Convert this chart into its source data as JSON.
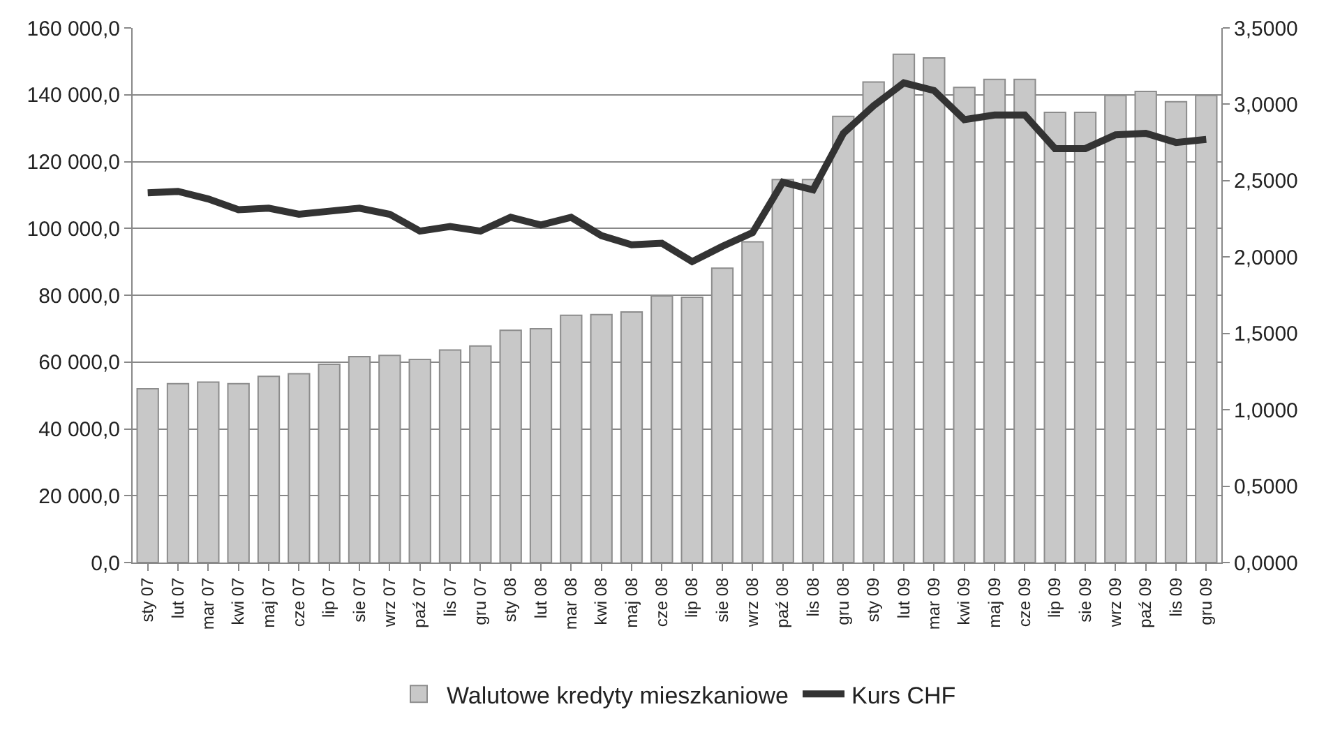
{
  "chart_data": {
    "type": "bar",
    "categories": [
      "sty 07",
      "lut 07",
      "mar 07",
      "kwi 07",
      "maj 07",
      "cze 07",
      "lip 07",
      "sie 07",
      "wrz 07",
      "paź 07",
      "lis 07",
      "gru 07",
      "sty 08",
      "lut 08",
      "mar 08",
      "kwi 08",
      "maj 08",
      "cze 08",
      "lip 08",
      "sie 08",
      "wrz 08",
      "paź 08",
      "lis 08",
      "gru 08",
      "sty 09",
      "lut 09",
      "mar 09",
      "kwi 09",
      "maj 09",
      "cze 09",
      "lip 09",
      "sie 09",
      "wrz 09",
      "paź 09",
      "lis 09",
      "gru 09"
    ],
    "series": [
      {
        "name": "Walutowe kredyty mieszkaniowe",
        "color": "#c8c8c8",
        "values": [
          52000,
          53500,
          54000,
          53500,
          55700,
          56500,
          59300,
          61600,
          62000,
          60800,
          63600,
          64800,
          69500,
          70000,
          74000,
          74200,
          75000,
          79800,
          79400,
          88100,
          96000,
          114600,
          114600,
          133500,
          143800,
          152100,
          151000,
          142200,
          144600,
          144600,
          134700,
          134700,
          139800,
          141000,
          137900,
          139800
        ]
      },
      {
        "name": "Kurs CHF",
        "type": "line",
        "axis": "y2",
        "color": "#333333",
        "values": [
          2.42,
          2.43,
          2.38,
          2.31,
          2.32,
          2.28,
          2.3,
          2.32,
          2.28,
          2.17,
          2.2,
          2.17,
          2.26,
          2.21,
          2.26,
          2.14,
          2.08,
          2.09,
          1.97,
          2.07,
          2.16,
          2.49,
          2.44,
          2.81,
          2.99,
          3.14,
          3.09,
          2.9,
          2.93,
          2.93,
          2.71,
          2.71,
          2.8,
          2.81,
          2.75,
          2.77
        ]
      }
    ],
    "ylim": [
      0,
      160000
    ],
    "yticks": [
      {
        "value": 0,
        "label": "0,0"
      },
      {
        "value": 20000,
        "label": "20 000,0"
      },
      {
        "value": 40000,
        "label": "40 000,0"
      },
      {
        "value": 60000,
        "label": "60 000,0"
      },
      {
        "value": 80000,
        "label": "80 000,0"
      },
      {
        "value": 100000,
        "label": "100 000,0"
      },
      {
        "value": 120000,
        "label": "120 000,0"
      },
      {
        "value": 140000,
        "label": "140 000,0"
      },
      {
        "value": 160000,
        "label": "160 000,0"
      }
    ],
    "y2lim": [
      0,
      3.5
    ],
    "y2ticks": [
      {
        "value": 0,
        "label": "0,0000"
      },
      {
        "value": 0.5,
        "label": "0,5000"
      },
      {
        "value": 1,
        "label": "1,0000"
      },
      {
        "value": 1.5,
        "label": "1,5000"
      },
      {
        "value": 2,
        "label": "2,0000"
      },
      {
        "value": 2.5,
        "label": "2,5000"
      },
      {
        "value": 3,
        "label": "3,0000"
      },
      {
        "value": 3.5,
        "label": "3,5000"
      }
    ],
    "grid": "y",
    "legend": "bottom",
    "marker": "none",
    "line_style": "solid"
  }
}
